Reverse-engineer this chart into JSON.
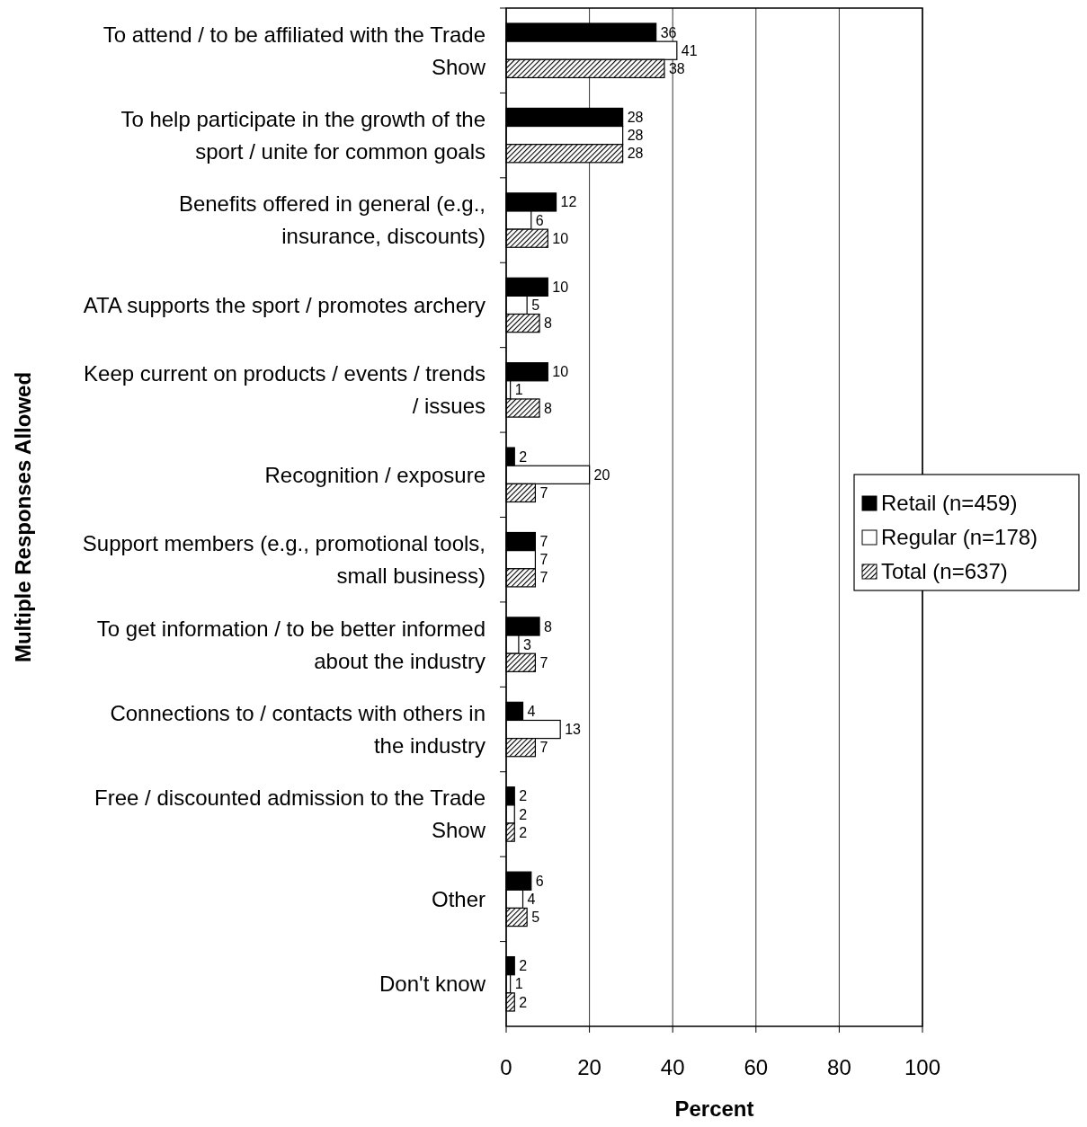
{
  "chart_data": {
    "type": "bar",
    "orientation": "horizontal",
    "xlabel": "Percent",
    "ylabel": "Multiple Responses Allowed",
    "categories": [
      "To attend / to be affiliated with the Trade Show",
      "To help participate in the growth of the sport / unite for common goals",
      "Benefits offered in general (e.g., insurance, discounts)",
      "ATA supports the sport / promotes archery",
      "Keep current on products / events / trends / issues",
      "Recognition / exposure",
      "Support members (e.g., promotional tools, small business)",
      "To get information / to be better informed about the industry",
      "Connections to / contacts with others in the industry",
      "Free / discounted admission to the Trade Show",
      "Other",
      "Don't know"
    ],
    "series": [
      {
        "name": "Retail (n=459)",
        "color": "#000000",
        "values": [
          36,
          28,
          12,
          10,
          10,
          2,
          7,
          8,
          4,
          2,
          6,
          2
        ]
      },
      {
        "name": "Regular (n=178)",
        "color": "#ffffff",
        "values": [
          41,
          28,
          6,
          5,
          1,
          20,
          7,
          3,
          13,
          2,
          4,
          1
        ]
      },
      {
        "name": "Total (n=637)",
        "color": "#000000",
        "values": [
          38,
          28,
          10,
          8,
          8,
          7,
          7,
          7,
          7,
          2,
          5,
          2
        ]
      }
    ],
    "xlim": [
      0,
      100
    ],
    "xticks": [
      0,
      20,
      40,
      60,
      80,
      100
    ],
    "grid": "x",
    "legend": "right",
    "data_labels": true
  }
}
